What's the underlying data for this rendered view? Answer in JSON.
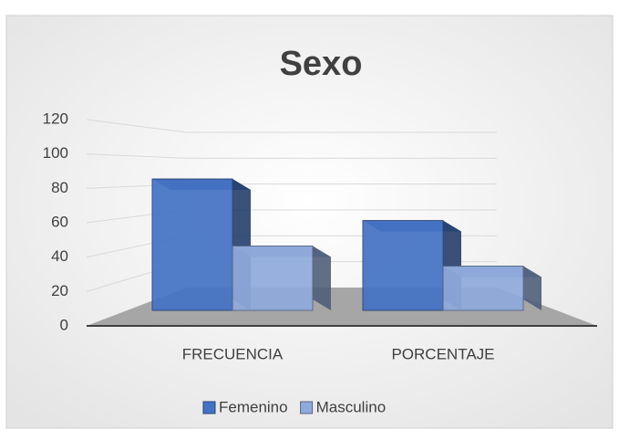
{
  "chart_data": {
    "type": "bar3d",
    "title": "Sexo",
    "categories": [
      "FRECUENCIA",
      "PORCENTAJE"
    ],
    "series": [
      {
        "name": "Femenino",
        "color": "#4472c4",
        "values": [
          98,
          67
        ]
      },
      {
        "name": "Masculino",
        "color": "#8faadc",
        "values": [
          48,
          33
        ]
      }
    ],
    "ylim": [
      0,
      120
    ],
    "yticks": [
      0,
      20,
      40,
      60,
      80,
      100,
      120
    ],
    "grid": true,
    "legend": "bottom"
  }
}
